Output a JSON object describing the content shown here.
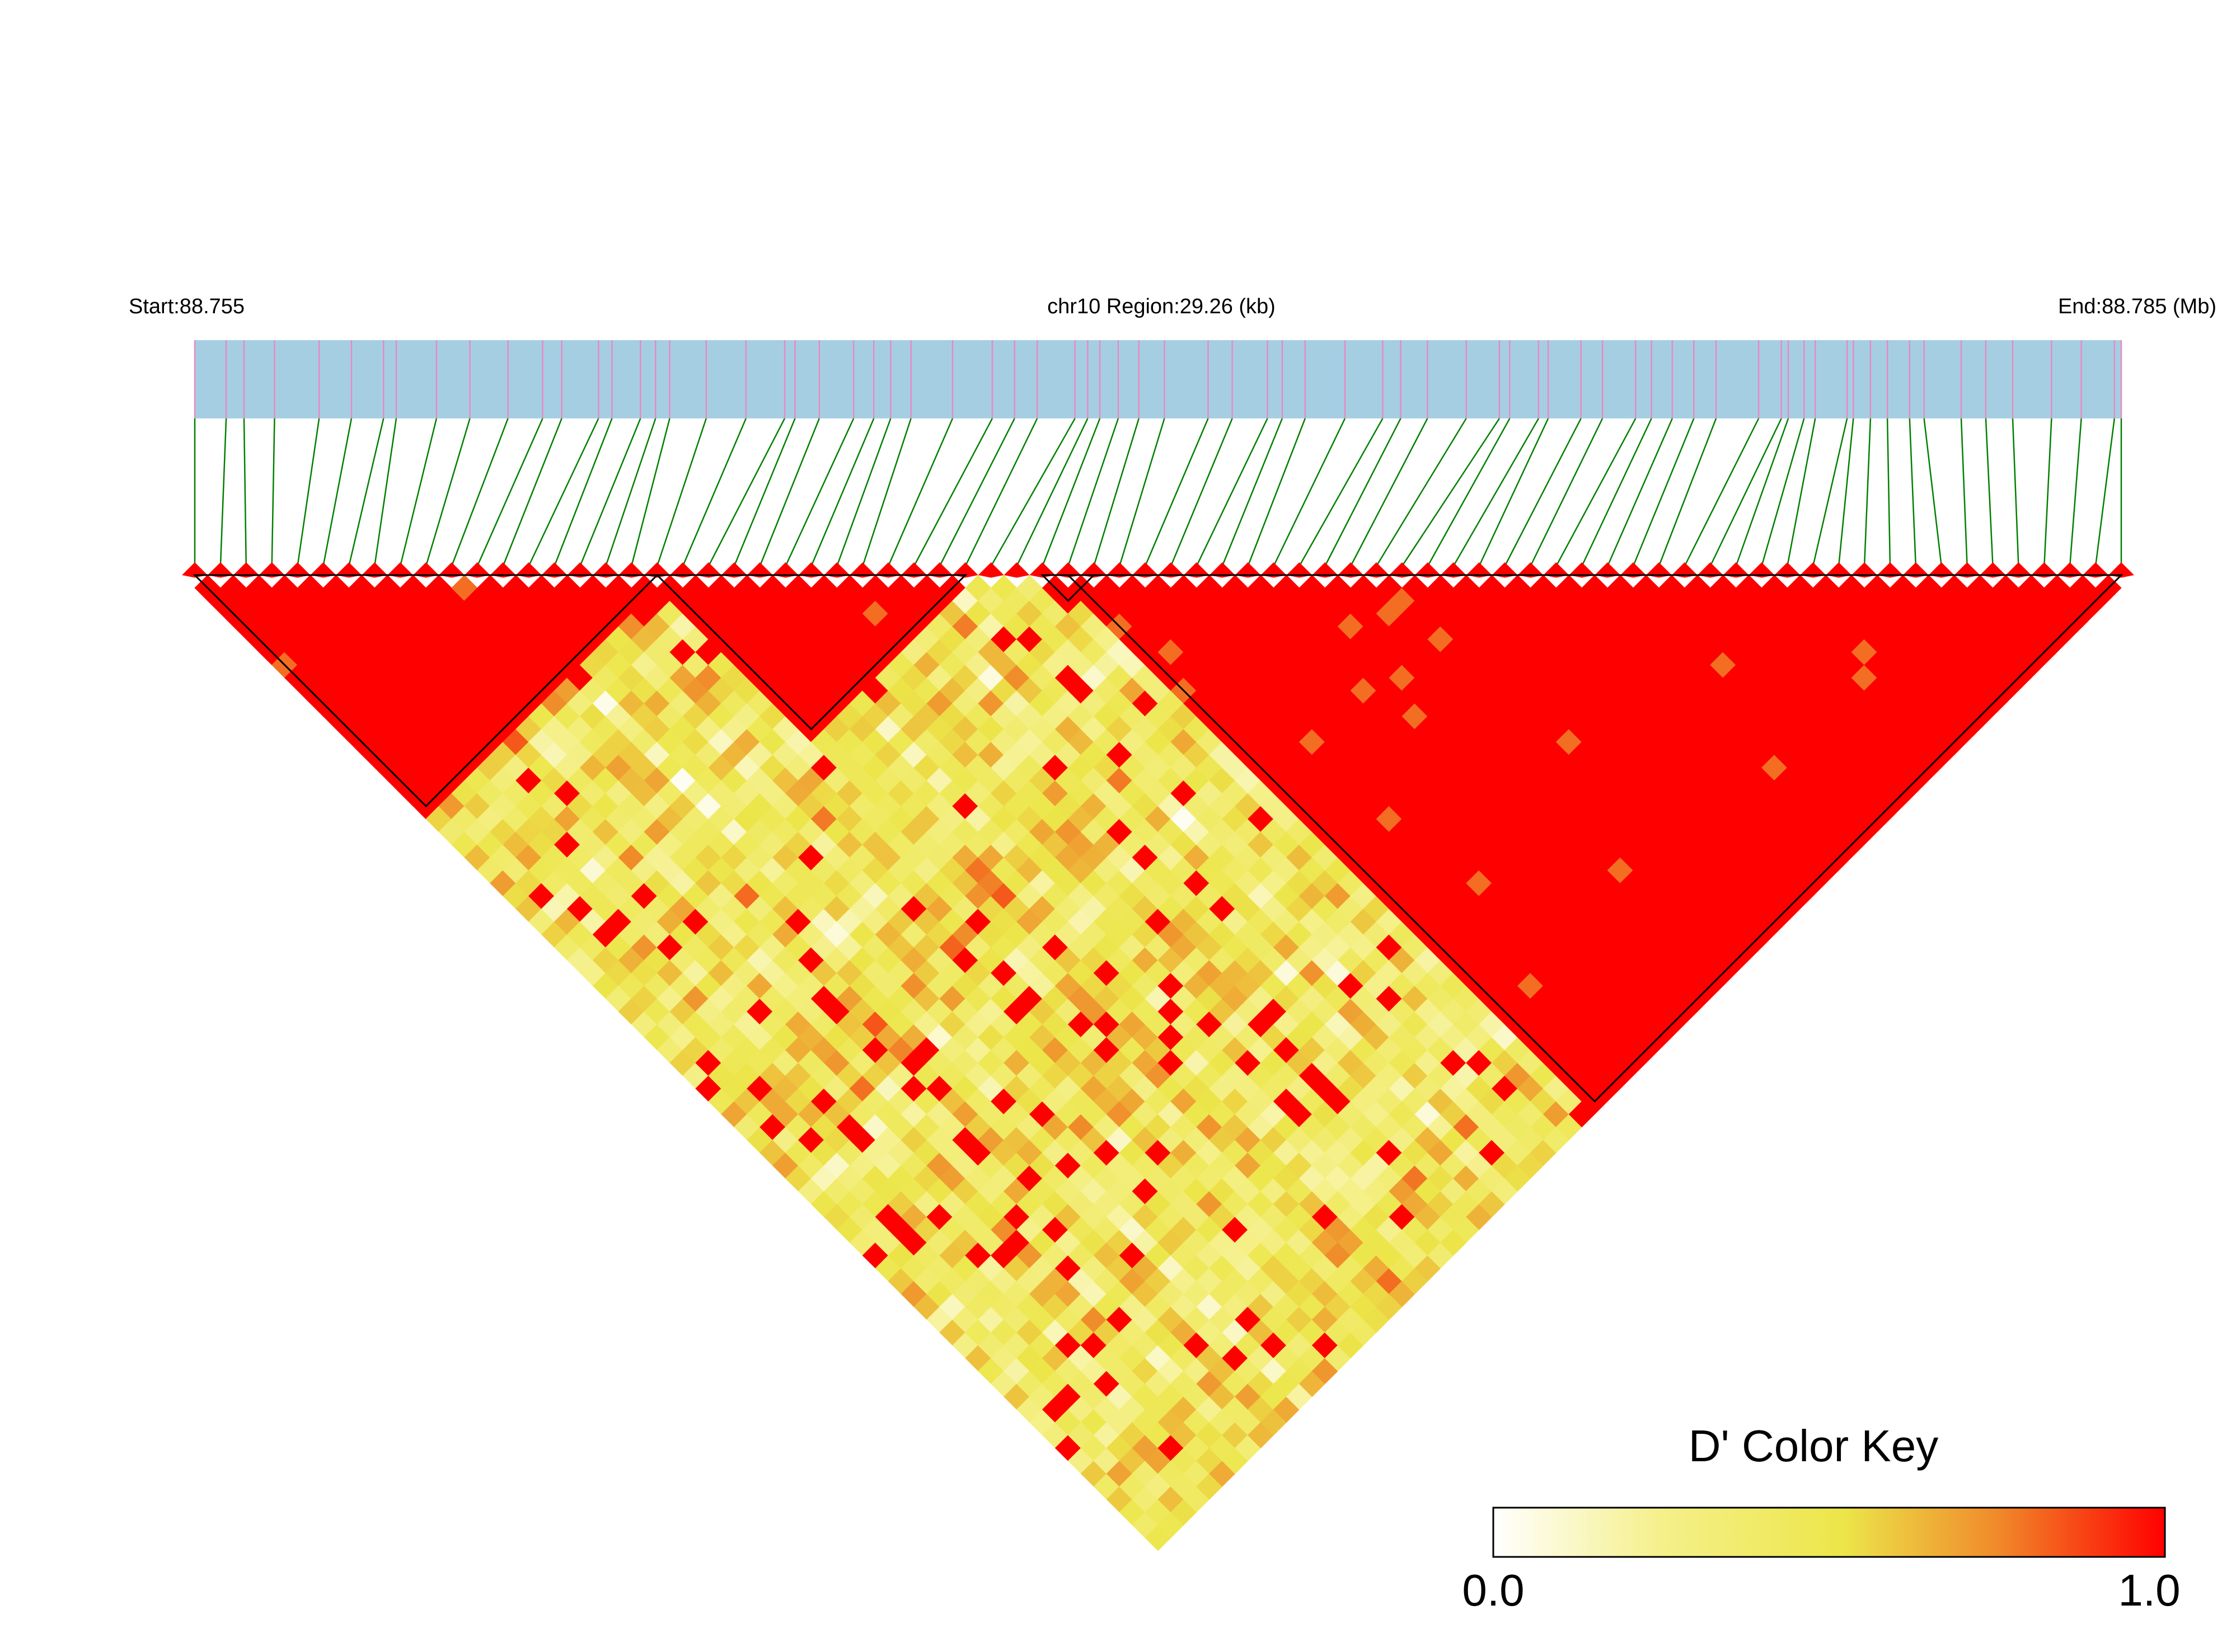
{
  "chart_data": {
    "type": "heatmap",
    "subtype": "LD block plot (triangular, rotated 45 degrees)",
    "start_label": "Start:88.755",
    "region_label": "chr10 Region:29.26 (kb)",
    "end_label": "End:88.785 (Mb)",
    "start_mb": 88.755,
    "end_mb": 88.785,
    "snp_count": 76,
    "blocks": [
      {
        "first_snp": 1,
        "last_snp": 19
      },
      {
        "first_snp": 19,
        "last_snp": 31
      },
      {
        "first_snp": 34,
        "last_snp": 36
      },
      {
        "first_snp": 35,
        "last_snp": 76
      }
    ],
    "color_key": {
      "title": "D' Color Key",
      "min_label": "0.0",
      "max_label": "1.0",
      "min": 0.0,
      "max": 1.0,
      "colors": [
        "#ffffff",
        "#f5f08a",
        "#ece64a",
        "#f08a2a",
        "#ff0000"
      ]
    },
    "colors": {
      "track": "#a6cee3",
      "snp_tick": "#e78ac3",
      "connector": "#008000",
      "high_ld": "#ff0000"
    }
  }
}
